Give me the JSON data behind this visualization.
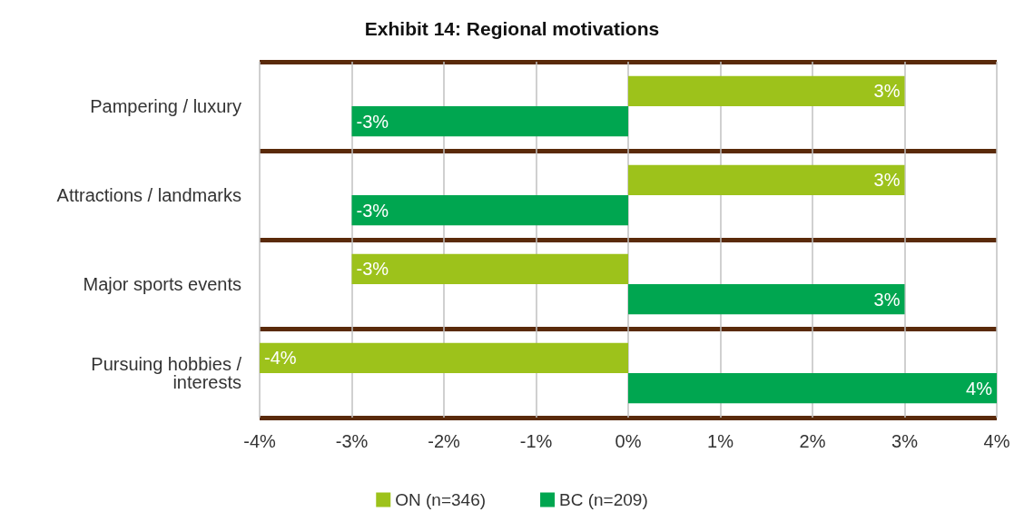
{
  "chart_data": {
    "type": "bar",
    "orientation": "horizontal",
    "title": "Exhibit 14: Regional motivations",
    "categories": [
      "Pampering / luxury",
      "Attractions / landmarks",
      "Major sports events",
      "Pursuing hobbies /\ninterests"
    ],
    "series": [
      {
        "name": "ON (n=346)",
        "color": "#9dc21b",
        "values": [
          3,
          3,
          -3,
          -4
        ],
        "value_labels": [
          "3%",
          "3%",
          "-3%",
          "-4%"
        ]
      },
      {
        "name": "BC (n=209)",
        "color": "#00a650",
        "values": [
          -3,
          -3,
          3,
          4
        ],
        "value_labels": [
          "-3%",
          "-3%",
          "3%",
          "4%"
        ]
      }
    ],
    "xlim": [
      -4,
      4
    ],
    "xticks": [
      {
        "value": -4,
        "label": "-4%"
      },
      {
        "value": -3,
        "label": "-3%"
      },
      {
        "value": -2,
        "label": "-2%"
      },
      {
        "value": -1,
        "label": "-1%"
      },
      {
        "value": 0,
        "label": "0%"
      },
      {
        "value": 1,
        "label": "1%"
      },
      {
        "value": 2,
        "label": "2%"
      },
      {
        "value": 3,
        "label": "3%"
      },
      {
        "value": 4,
        "label": "4%"
      }
    ],
    "grid": "x",
    "legend": "bottom"
  }
}
